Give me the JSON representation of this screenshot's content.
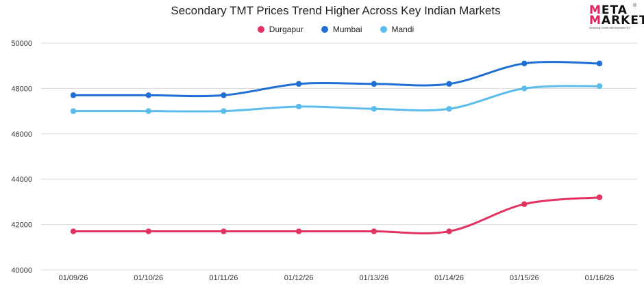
{
  "chart_data": {
    "type": "line",
    "title": "Secondary TMT Prices Trend Higher Across Key Indian Markets",
    "categories": [
      "01/09/26",
      "01/10/26",
      "01/11/26",
      "01/12/26",
      "01/13/26",
      "01/14/26",
      "01/15/26",
      "01/16/26"
    ],
    "ylim": [
      40000,
      50000
    ],
    "yticks": [
      40000,
      42000,
      44000,
      46000,
      48000,
      50000
    ],
    "grid": true,
    "legend_position": "top-center",
    "series": [
      {
        "name": "Durgapur",
        "color": "#e3325f",
        "values": [
          41700,
          41700,
          41700,
          41700,
          41700,
          41700,
          42900,
          43200
        ]
      },
      {
        "name": "Mumbai",
        "color": "#1f6ed4",
        "values": [
          47700,
          47700,
          47700,
          48200,
          48200,
          48200,
          49100,
          49100
        ]
      },
      {
        "name": "Mandi",
        "color": "#5bbcec",
        "values": [
          47000,
          47000,
          47000,
          47200,
          47100,
          47100,
          48000,
          48100
        ]
      }
    ]
  },
  "logo": {
    "line1": "ETA",
    "line2": "ARKET",
    "initial": "M",
    "tagline": "Advancing Growth with Hardware Fly it",
    "mark": "®"
  }
}
